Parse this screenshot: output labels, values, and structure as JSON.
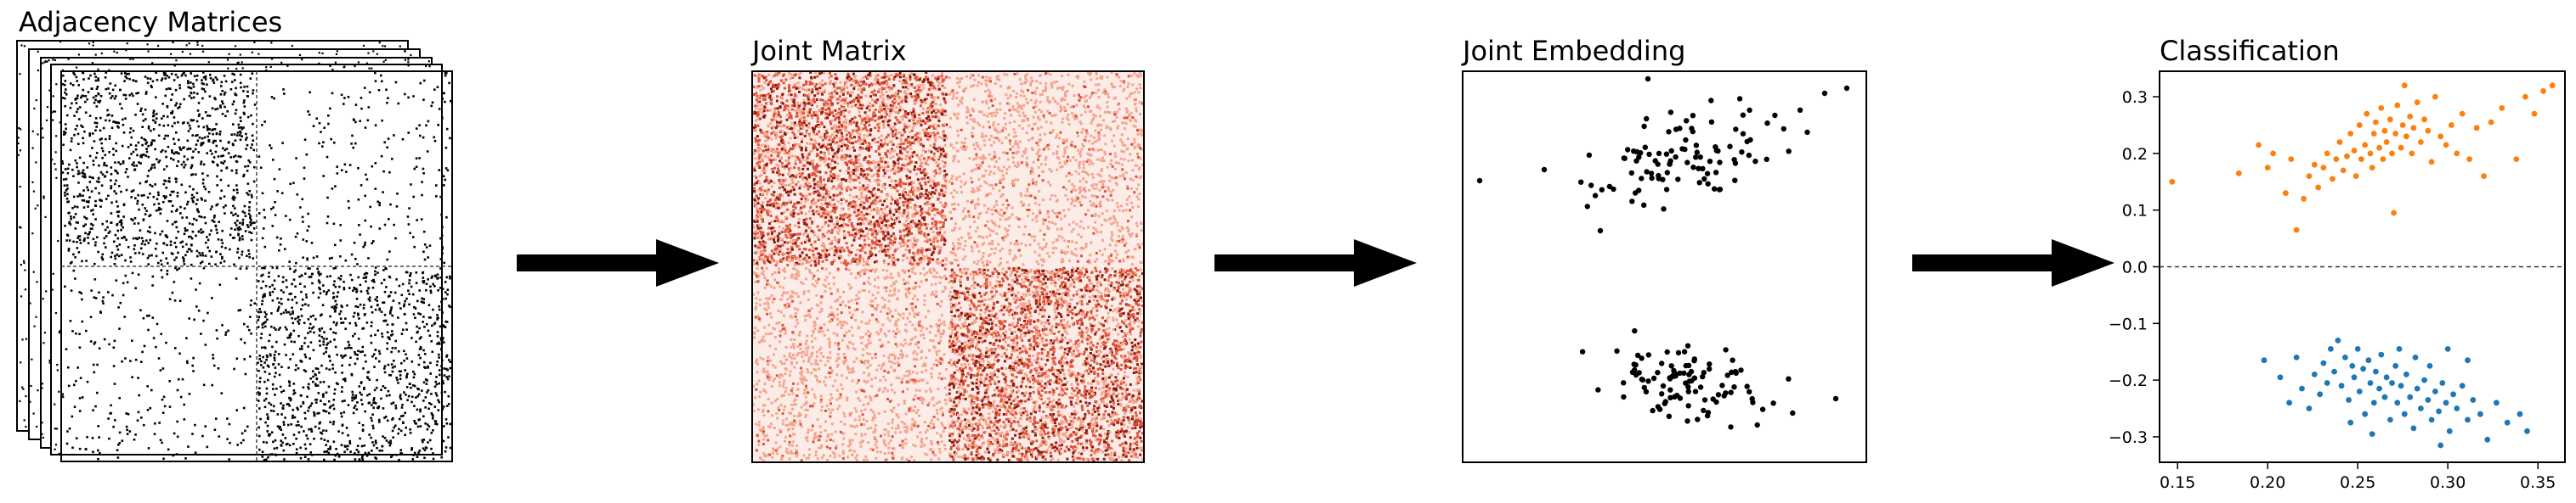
{
  "panels": {
    "adjacency": {
      "title": "Adjacency Matrices"
    },
    "joint_matrix": {
      "title": "Joint Matrix"
    },
    "joint_embedding": {
      "title": "Joint Embedding"
    },
    "classification": {
      "title": "Classification"
    }
  },
  "colors": {
    "dots": "#000000",
    "heat_dark": "#8b1a0c",
    "heat_mid": "#e0533a",
    "heat_light": "#f4a58e",
    "heat_bg": "#fbece8",
    "class_upper": "#ff7f0e",
    "class_lower": "#1f77b4",
    "arrow": "#000000"
  },
  "chart_data": {
    "type": "scatter",
    "title": "Classification",
    "xlabel": "",
    "ylabel": "",
    "xlim": [
      0.14,
      0.365
    ],
    "ylim": [
      -0.345,
      0.345
    ],
    "x_ticks": [
      "0.15",
      "0.20",
      "0.25",
      "0.30",
      "0.35"
    ],
    "x_tick_values": [
      0.15,
      0.2,
      0.25,
      0.3,
      0.35
    ],
    "y_ticks": [
      "0.3",
      "0.2",
      "0.1",
      "0.0",
      "−0.1",
      "−0.2",
      "−0.3"
    ],
    "y_tick_values": [
      0.3,
      0.2,
      0.1,
      0.0,
      -0.1,
      -0.2,
      -0.3
    ],
    "zero_line": true,
    "series": [
      {
        "points": [
          [
            0.147,
            0.15
          ],
          [
            0.184,
            0.165
          ],
          [
            0.195,
            0.215
          ],
          [
            0.2,
            0.175
          ],
          [
            0.203,
            0.2
          ],
          [
            0.21,
            0.13
          ],
          [
            0.213,
            0.19
          ],
          [
            0.216,
            0.065
          ],
          [
            0.22,
            0.12
          ],
          [
            0.223,
            0.16
          ],
          [
            0.226,
            0.18
          ],
          [
            0.228,
            0.14
          ],
          [
            0.231,
            0.175
          ],
          [
            0.233,
            0.2
          ],
          [
            0.236,
            0.155
          ],
          [
            0.238,
            0.19
          ],
          [
            0.24,
            0.22
          ],
          [
            0.242,
            0.17
          ],
          [
            0.244,
            0.195
          ],
          [
            0.246,
            0.235
          ],
          [
            0.248,
            0.205
          ],
          [
            0.249,
            0.16
          ],
          [
            0.251,
            0.25
          ],
          [
            0.252,
            0.19
          ],
          [
            0.254,
            0.215
          ],
          [
            0.255,
            0.27
          ],
          [
            0.257,
            0.2
          ],
          [
            0.258,
            0.175
          ],
          [
            0.259,
            0.235
          ],
          [
            0.26,
            0.255
          ],
          [
            0.262,
            0.21
          ],
          [
            0.263,
            0.28
          ],
          [
            0.264,
            0.19
          ],
          [
            0.265,
            0.24
          ],
          [
            0.266,
            0.22
          ],
          [
            0.268,
            0.26
          ],
          [
            0.269,
            0.2
          ],
          [
            0.27,
            0.095
          ],
          [
            0.271,
            0.235
          ],
          [
            0.272,
            0.285
          ],
          [
            0.274,
            0.21
          ],
          [
            0.275,
            0.25
          ],
          [
            0.276,
            0.32
          ],
          [
            0.277,
            0.23
          ],
          [
            0.279,
            0.265
          ],
          [
            0.28,
            0.2
          ],
          [
            0.281,
            0.245
          ],
          [
            0.283,
            0.29
          ],
          [
            0.285,
            0.22
          ],
          [
            0.287,
            0.26
          ],
          [
            0.289,
            0.24
          ],
          [
            0.291,
            0.185
          ],
          [
            0.293,
            0.3
          ],
          [
            0.296,
            0.23
          ],
          [
            0.299,
            0.215
          ],
          [
            0.302,
            0.25
          ],
          [
            0.305,
            0.2
          ],
          [
            0.308,
            0.27
          ],
          [
            0.312,
            0.19
          ],
          [
            0.316,
            0.245
          ],
          [
            0.32,
            0.16
          ],
          [
            0.324,
            0.255
          ],
          [
            0.33,
            0.28
          ],
          [
            0.338,
            0.19
          ],
          [
            0.343,
            0.3
          ],
          [
            0.348,
            0.27
          ],
          [
            0.353,
            0.31
          ],
          [
            0.358,
            0.32
          ]
        ]
      },
      {
        "points": [
          [
            0.198,
            -0.165
          ],
          [
            0.207,
            -0.195
          ],
          [
            0.212,
            -0.24
          ],
          [
            0.216,
            -0.16
          ],
          [
            0.219,
            -0.215
          ],
          [
            0.223,
            -0.25
          ],
          [
            0.226,
            -0.19
          ],
          [
            0.229,
            -0.225
          ],
          [
            0.231,
            -0.17
          ],
          [
            0.233,
            -0.205
          ],
          [
            0.235,
            -0.145
          ],
          [
            0.237,
            -0.185
          ],
          [
            0.239,
            -0.13
          ],
          [
            0.241,
            -0.21
          ],
          [
            0.243,
            -0.16
          ],
          [
            0.245,
            -0.235
          ],
          [
            0.247,
            -0.175
          ],
          [
            0.248,
            -0.195
          ],
          [
            0.25,
            -0.145
          ],
          [
            0.251,
            -0.22
          ],
          [
            0.253,
            -0.18
          ],
          [
            0.254,
            -0.26
          ],
          [
            0.256,
            -0.165
          ],
          [
            0.257,
            -0.205
          ],
          [
            0.259,
            -0.24
          ],
          [
            0.26,
            -0.185
          ],
          [
            0.262,
            -0.215
          ],
          [
            0.263,
            -0.155
          ],
          [
            0.265,
            -0.23
          ],
          [
            0.266,
            -0.195
          ],
          [
            0.268,
            -0.27
          ],
          [
            0.269,
            -0.205
          ],
          [
            0.271,
            -0.175
          ],
          [
            0.272,
            -0.24
          ],
          [
            0.274,
            -0.21
          ],
          [
            0.276,
            -0.26
          ],
          [
            0.277,
            -0.19
          ],
          [
            0.279,
            -0.23
          ],
          [
            0.281,
            -0.285
          ],
          [
            0.283,
            -0.215
          ],
          [
            0.285,
            -0.25
          ],
          [
            0.287,
            -0.2
          ],
          [
            0.289,
            -0.235
          ],
          [
            0.291,
            -0.27
          ],
          [
            0.293,
            -0.22
          ],
          [
            0.295,
            -0.255
          ],
          [
            0.297,
            -0.205
          ],
          [
            0.299,
            -0.24
          ],
          [
            0.301,
            -0.29
          ],
          [
            0.303,
            -0.225
          ],
          [
            0.305,
            -0.25
          ],
          [
            0.308,
            -0.21
          ],
          [
            0.311,
            -0.27
          ],
          [
            0.314,
            -0.235
          ],
          [
            0.318,
            -0.26
          ],
          [
            0.322,
            -0.305
          ],
          [
            0.327,
            -0.24
          ],
          [
            0.333,
            -0.275
          ],
          [
            0.34,
            -0.26
          ],
          [
            0.344,
            -0.29
          ],
          [
            0.3,
            -0.145
          ],
          [
            0.282,
            -0.16
          ],
          [
            0.29,
            -0.175
          ],
          [
            0.273,
            -0.145
          ],
          [
            0.258,
            -0.295
          ],
          [
            0.246,
            -0.275
          ],
          [
            0.296,
            -0.315
          ],
          [
            0.311,
            -0.165
          ]
        ]
      }
    ]
  }
}
